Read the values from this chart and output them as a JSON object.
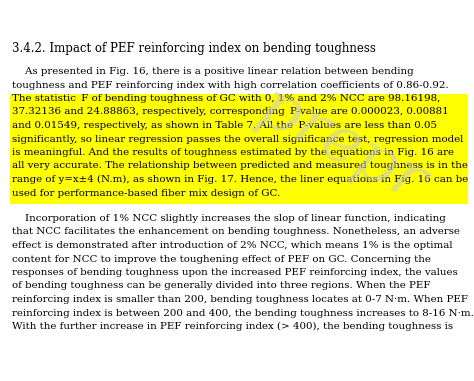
{
  "background_color": "#ffffff",
  "heading": "3.4.2. Impact of PEF reinforcing index on bending toughness",
  "body_color": "#000000",
  "highlighted_color": "#ffff00",
  "p1_line1": "    As presented in Fig. 16, there is a positive linear relation between bending",
  "p1_line2": "toughness and PEF reinforcing index with high correlation coefficients of 0.86-0.92.",
  "p1_hl_start": "The statistic  F of bending toughness of GC with 0, 1% and 2% NCC are 98.16198,",
  "p1_hl2": "37.32136 and 24.88863, respectively, corresponding  P-value are 0.000023, 0.00881",
  "p1_hl3": "and 0.01549, respectively, as shown in Table 7. All the  P-values are less than 0.05",
  "p1_hl4": "significantly, so linear regression passes the overall significance test, regression model",
  "p1_hl5": "is meaningful. And the results of toughness estimated by the equations in Fig. 16 are",
  "p1_hl6": "all very accurate. The relationship between predicted and measured toughness is in the",
  "p1_hl7": "range of y=x±4 (N.m), as shown in Fig. 17. Hence, the liner equations in Fig. 16 can be",
  "p1_hl8": "used for performance-based fiber mix design of GC.",
  "p2_line1": "    Incorporation of 1% NCC slightly increases the slop of linear function, indicating",
  "p2_line2": "that NCC facilitates the enhancement on bending toughness. Nonetheless, an adverse",
  "p2_line3": "effect is demonstrated after introduction of 2% NCC, which means 1% is the optimal",
  "p2_line4": "content for NCC to improve the toughening effect of PEF on GC. Concerning the",
  "p2_line5": "responses of bending toughness upon the increased PEF reinforcing index, the values",
  "p2_line6": "of bending toughness can be generally divided into three regions. When the PEF",
  "p2_line7": "reinforcing index is smaller than 200, bending toughness locates at 0-7 N·m. When PEF",
  "p2_line8": "reinforcing index is between 200 and 400, the bending toughness increases to 8-16 N·m.",
  "p2_line9": "With the further increase in PEF reinforcing index (> 400), the bending toughness is",
  "watermark_text": "prepr",
  "watermark_color": "#c8c8c8",
  "fig_width": 4.74,
  "fig_height": 3.81,
  "dpi": 100
}
